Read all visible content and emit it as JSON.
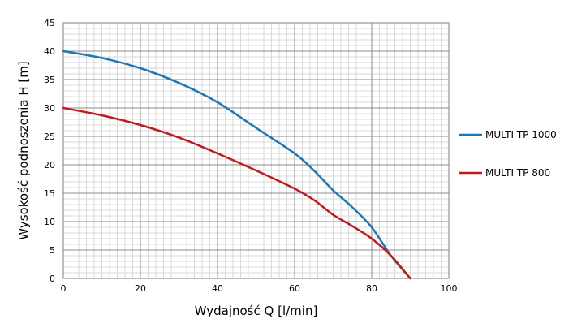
{
  "chart_data": {
    "type": "line",
    "title": "",
    "xlabel": "Wydajność Q [l/min]",
    "ylabel": "Wysokość podnoszenia H [m]",
    "xlim": [
      0,
      100
    ],
    "ylim": [
      0,
      45
    ],
    "x_ticks": [
      "0",
      "20",
      "40",
      "60",
      "80",
      "100"
    ],
    "y_ticks": [
      "0",
      "5",
      "10",
      "15",
      "20",
      "25",
      "30",
      "35",
      "40",
      "45"
    ],
    "grid": true,
    "legend_position": "right",
    "series": [
      {
        "name": "MULTI TP 1000",
        "color": "#1f77b4",
        "x": [
          0,
          10,
          20,
          30,
          40,
          50,
          60,
          65,
          70,
          75,
          80,
          85,
          90
        ],
        "y": [
          40,
          38.8,
          37,
          34.4,
          31,
          26.5,
          22,
          19,
          15.5,
          12.5,
          9,
          4,
          0
        ]
      },
      {
        "name": "MULTI TP 800",
        "color": "#c0191e",
        "x": [
          0,
          10,
          20,
          30,
          40,
          50,
          60,
          65,
          70,
          75,
          80,
          85,
          90
        ],
        "y": [
          30,
          28.7,
          27,
          24.8,
          22,
          19,
          15.8,
          13.8,
          11.2,
          9.2,
          7,
          4,
          0
        ]
      }
    ]
  }
}
